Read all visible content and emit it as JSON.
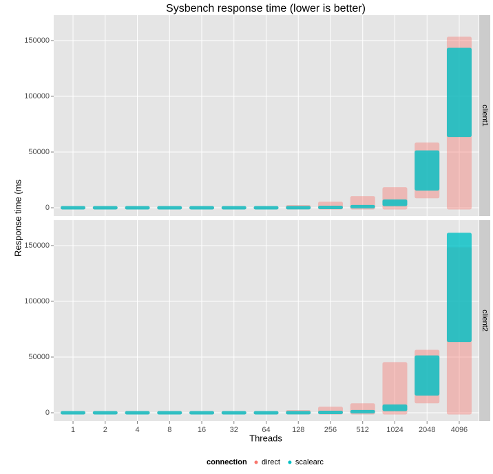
{
  "chart_data": {
    "type": "strip",
    "title": "Sysbench response time (lower is better)",
    "x_label": "Threads",
    "y_label": "Response time (ms",
    "categories": [
      "1",
      "2",
      "4",
      "8",
      "16",
      "32",
      "64",
      "128",
      "256",
      "512",
      "1024",
      "2048",
      "4096"
    ],
    "ylim": [
      -7400,
      172800
    ],
    "yticks": [
      0,
      50000,
      100000,
      150000
    ],
    "grid": true,
    "legend_title": "connection",
    "legend_position": "bottom",
    "facets": [
      {
        "label": "client1",
        "series": [
          {
            "name": "direct",
            "color": "#F8766D",
            "low": [
              0,
              0,
              0,
              0,
              0,
              0,
              0,
              0,
              0,
              0,
              0,
              10000,
              0
            ],
            "high": [
              300,
              300,
              300,
              400,
              500,
              800,
              2000,
              4000,
              7000,
              12000,
              20000,
              60000,
              155000
            ]
          },
          {
            "name": "scalearc",
            "color": "#00BFC4",
            "low": [
              0,
              0,
              0,
              0,
              0,
              0,
              0,
              100,
              300,
              1000,
              3000,
              17000,
              65000
            ],
            "high": [
              200,
              200,
              300,
              300,
              400,
              500,
              700,
              1200,
              1800,
              3000,
              9000,
              53000,
              145000
            ]
          }
        ]
      },
      {
        "label": "client2",
        "series": [
          {
            "name": "direct",
            "color": "#F8766D",
            "low": [
              0,
              0,
              0,
              0,
              0,
              0,
              0,
              0,
              0,
              0,
              0,
              10000,
              0
            ],
            "high": [
              300,
              300,
              300,
              400,
              500,
              800,
              2000,
              4000,
              7000,
              10000,
              47000,
              58000,
              150000
            ]
          },
          {
            "name": "scalearc",
            "color": "#00BFC4",
            "low": [
              0,
              0,
              0,
              0,
              0,
              0,
              0,
              100,
              300,
              1000,
              3000,
              17000,
              65000
            ],
            "high": [
              200,
              200,
              300,
              300,
              400,
              500,
              700,
              1200,
              1800,
              3000,
              9000,
              53000,
              163000
            ]
          }
        ]
      }
    ]
  }
}
